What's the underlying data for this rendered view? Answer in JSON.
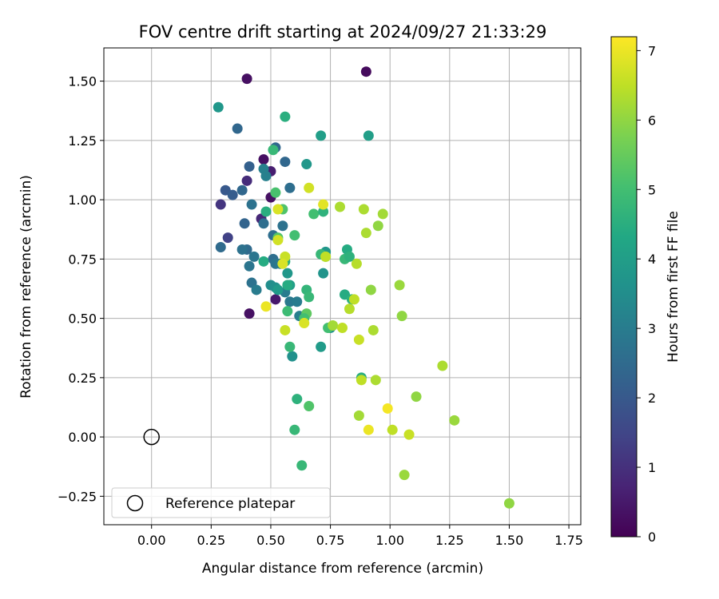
{
  "chart_data": {
    "type": "scatter",
    "title": "FOV centre drift starting at 2024/09/27 21:33:29",
    "xlabel": "Angular distance from reference (arcmin)",
    "ylabel": "Rotation from reference (arcmin)",
    "xlim": [
      -0.2,
      1.8
    ],
    "ylim": [
      -0.37,
      1.64
    ],
    "xticks": [
      "0.00",
      "0.25",
      "0.50",
      "0.75",
      "1.00",
      "1.25",
      "1.50",
      "1.75"
    ],
    "xtick_values": [
      0,
      0.25,
      0.5,
      0.75,
      1.0,
      1.25,
      1.5,
      1.75
    ],
    "yticks": [
      "−0.25",
      "0.00",
      "0.25",
      "0.50",
      "0.75",
      "1.00",
      "1.25",
      "1.50"
    ],
    "ytick_values": [
      -0.25,
      0,
      0.25,
      0.5,
      0.75,
      1.0,
      1.25,
      1.5
    ],
    "grid": true,
    "legend": {
      "placement": "lower-left",
      "label": "Reference platepar"
    },
    "reference": {
      "x": 0.0,
      "y": 0.0
    },
    "colorbar": {
      "label": "Hours from first FF file",
      "min": 0,
      "max": 7.2,
      "ticks": [
        "0",
        "1",
        "2",
        "3",
        "4",
        "5",
        "6",
        "7"
      ],
      "tick_values": [
        0,
        1,
        2,
        3,
        4,
        5,
        6,
        7
      ],
      "colormap": "viridis"
    },
    "series": [
      {
        "points": [
          [
            0.4,
            1.51,
            0.3
          ],
          [
            0.9,
            1.54,
            0.2
          ],
          [
            0.41,
            0.52,
            0.3
          ],
          [
            0.47,
            1.17,
            0.3
          ],
          [
            0.5,
            1.01,
            0.3
          ],
          [
            0.52,
            0.58,
            0.5
          ],
          [
            0.46,
            0.92,
            0.8
          ],
          [
            0.5,
            1.12,
            0.6
          ],
          [
            0.4,
            1.08,
            0.9
          ],
          [
            0.29,
            0.98,
            1.1
          ],
          [
            0.32,
            0.84,
            1.4
          ],
          [
            0.31,
            1.04,
            2.0
          ],
          [
            0.34,
            1.02,
            2.1
          ],
          [
            0.36,
            1.3,
            2.4
          ],
          [
            0.29,
            0.8,
            2.5
          ],
          [
            0.41,
            1.14,
            2.2
          ],
          [
            0.38,
            1.04,
            2.4
          ],
          [
            0.39,
            0.9,
            2.3
          ],
          [
            0.42,
            0.98,
            2.7
          ],
          [
            0.47,
            0.9,
            2.6
          ],
          [
            0.4,
            0.79,
            2.5
          ],
          [
            0.38,
            0.79,
            2.7
          ],
          [
            0.43,
            0.76,
            2.8
          ],
          [
            0.41,
            0.72,
            2.8
          ],
          [
            0.42,
            0.65,
            2.7
          ],
          [
            0.44,
            0.62,
            3.0
          ],
          [
            0.47,
            1.13,
            3.1
          ],
          [
            0.48,
            1.1,
            3.1
          ],
          [
            0.52,
            1.22,
            2.4
          ],
          [
            0.51,
            0.85,
            2.6
          ],
          [
            0.55,
            0.89,
            2.7
          ],
          [
            0.56,
            1.16,
            2.4
          ],
          [
            0.58,
            1.05,
            2.6
          ],
          [
            0.51,
            0.75,
            2.6
          ],
          [
            0.52,
            0.73,
            2.8
          ],
          [
            0.54,
            0.73,
            2.9
          ],
          [
            0.56,
            0.61,
            3.0
          ],
          [
            0.58,
            0.57,
            2.9
          ],
          [
            0.61,
            0.57,
            3.0
          ],
          [
            0.62,
            0.51,
            3.1
          ],
          [
            0.5,
            0.64,
            3.5
          ],
          [
            0.52,
            0.63,
            3.6
          ],
          [
            0.57,
            0.69,
            3.8
          ],
          [
            0.58,
            0.64,
            4.0
          ],
          [
            0.59,
            0.34,
            3.6
          ],
          [
            0.28,
            1.39,
            3.8
          ],
          [
            0.53,
            0.62,
            3.9
          ],
          [
            0.57,
            0.64,
            4.4
          ],
          [
            0.72,
            0.69,
            3.7
          ],
          [
            0.73,
            0.78,
            3.8
          ],
          [
            0.75,
            0.46,
            3.6
          ],
          [
            0.71,
            0.38,
            3.9
          ],
          [
            0.65,
            1.15,
            3.8
          ],
          [
            0.56,
            1.35,
            4.5
          ],
          [
            0.71,
            1.27,
            4.0
          ],
          [
            0.91,
            1.27,
            4.0
          ],
          [
            0.47,
            0.74,
            4.4
          ],
          [
            0.48,
            0.95,
            4.5
          ],
          [
            0.51,
            1.21,
            4.8
          ],
          [
            0.52,
            1.03,
            5.1
          ],
          [
            0.55,
            0.96,
            5.2
          ],
          [
            0.53,
            0.84,
            5.2
          ],
          [
            0.56,
            0.74,
            4.5
          ],
          [
            0.57,
            0.53,
            4.9
          ],
          [
            0.58,
            0.38,
            4.8
          ],
          [
            0.6,
            0.85,
            5.0
          ],
          [
            0.65,
            0.62,
            4.7
          ],
          [
            0.66,
            0.59,
            4.8
          ],
          [
            0.65,
            0.52,
            5.4
          ],
          [
            0.64,
            0.5,
            5.0
          ],
          [
            0.68,
            0.94,
            5.0
          ],
          [
            0.72,
            0.95,
            4.6
          ],
          [
            0.71,
            0.77,
            4.8
          ],
          [
            0.73,
            0.76,
            5.2
          ],
          [
            0.74,
            0.46,
            5.0
          ],
          [
            0.81,
            0.75,
            4.8
          ],
          [
            0.82,
            0.79,
            4.4
          ],
          [
            0.83,
            0.76,
            4.6
          ],
          [
            0.81,
            0.6,
            4.4
          ],
          [
            0.84,
            0.58,
            4.6
          ],
          [
            0.88,
            0.25,
            4.5
          ],
          [
            0.61,
            0.16,
            4.6
          ],
          [
            0.6,
            0.03,
            4.8
          ],
          [
            0.66,
            0.13,
            5.2
          ],
          [
            0.63,
            -0.12,
            4.8
          ],
          [
            0.48,
            0.55,
            7.0
          ],
          [
            0.53,
            0.96,
            6.8
          ],
          [
            0.53,
            0.83,
            6.7
          ],
          [
            0.56,
            0.76,
            6.6
          ],
          [
            0.55,
            0.73,
            6.8
          ],
          [
            0.56,
            0.45,
            6.6
          ],
          [
            0.64,
            0.48,
            6.8
          ],
          [
            0.66,
            1.05,
            6.7
          ],
          [
            0.72,
            0.98,
            6.9
          ],
          [
            0.73,
            0.76,
            6.5
          ],
          [
            0.76,
            0.47,
            6.2
          ],
          [
            0.79,
            0.97,
            6.3
          ],
          [
            0.8,
            0.46,
            6.5
          ],
          [
            0.83,
            0.54,
            6.4
          ],
          [
            0.85,
            0.58,
            6.5
          ],
          [
            0.86,
            0.73,
            6.4
          ],
          [
            0.87,
            0.41,
            6.6
          ],
          [
            0.89,
            0.96,
            6.3
          ],
          [
            0.9,
            0.86,
            6.3
          ],
          [
            0.92,
            0.62,
            6.0
          ],
          [
            0.93,
            0.45,
            6.3
          ],
          [
            0.95,
            0.89,
            6.0
          ],
          [
            0.97,
            0.94,
            6.2
          ],
          [
            0.88,
            0.24,
            6.5
          ],
          [
            0.87,
            0.09,
            6.2
          ],
          [
            0.91,
            0.03,
            7.0
          ],
          [
            0.94,
            0.24,
            6.3
          ],
          [
            0.99,
            0.12,
            7.1
          ],
          [
            1.01,
            0.03,
            6.5
          ],
          [
            1.04,
            0.64,
            6.1
          ],
          [
            1.05,
            0.51,
            6.0
          ],
          [
            1.06,
            -0.16,
            6.1
          ],
          [
            1.08,
            0.01,
            6.6
          ],
          [
            1.11,
            0.17,
            6.0
          ],
          [
            1.22,
            0.3,
            6.3
          ],
          [
            1.27,
            0.07,
            6.1
          ],
          [
            1.5,
            -0.28,
            6.0
          ]
        ]
      }
    ]
  }
}
